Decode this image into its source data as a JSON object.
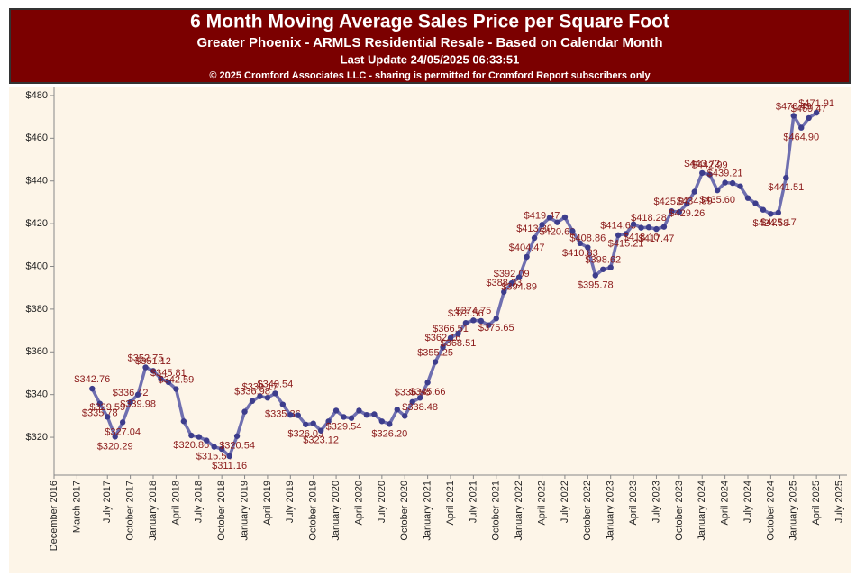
{
  "chart_data": {
    "type": "line",
    "title": "6 Month Moving Average Sales Price per Square Foot",
    "subtitle": "Greater Phoenix - ARMLS Residential Resale - Based on Calendar Month",
    "update": "Last Update 24/05/2025 06:33:51",
    "copyright": "© 2025 Cromford Associates LLC - sharing is permitted for Cromford Report subscribers only",
    "color": "#6f6fb0",
    "x": [
      "2017-05",
      "2017-06",
      "2017-07",
      "2017-08",
      "2017-09",
      "2017-10",
      "2017-11",
      "2017-12",
      "2018-01",
      "2018-02",
      "2018-03",
      "2018-04",
      "2018-05",
      "2018-06",
      "2018-07",
      "2018-08",
      "2018-09",
      "2018-10",
      "2018-11",
      "2018-12",
      "2019-01",
      "2019-02",
      "2019-03",
      "2019-04",
      "2019-05",
      "2019-06",
      "2019-07",
      "2019-08",
      "2019-09",
      "2019-10",
      "2019-11",
      "2019-12",
      "2020-01",
      "2020-02",
      "2020-03",
      "2020-04",
      "2020-05",
      "2020-06",
      "2020-07",
      "2020-08",
      "2020-09",
      "2020-10",
      "2020-11",
      "2020-12",
      "2021-01",
      "2021-02",
      "2021-03",
      "2021-04",
      "2021-05",
      "2021-06",
      "2021-07",
      "2021-08",
      "2021-09",
      "2021-10",
      "2021-11",
      "2021-12",
      "2022-01",
      "2022-02",
      "2022-03",
      "2022-04",
      "2022-05",
      "2022-06",
      "2022-07",
      "2022-08",
      "2022-09",
      "2022-10",
      "2022-11",
      "2022-12",
      "2023-01",
      "2023-02",
      "2023-03",
      "2023-04",
      "2023-05",
      "2023-06",
      "2023-07",
      "2023-08",
      "2023-09",
      "2023-10",
      "2023-11",
      "2023-12",
      "2024-01",
      "2024-02",
      "2024-03",
      "2024-04",
      "2024-05",
      "2024-06",
      "2024-07",
      "2024-08",
      "2024-09",
      "2024-10",
      "2024-11",
      "2024-12",
      "2025-01",
      "2025-02",
      "2025-03",
      "2025-04"
    ],
    "values": [
      342.76,
      335.78,
      329.59,
      320.29,
      327.04,
      336.42,
      339.98,
      352.75,
      351.12,
      347.5,
      345.81,
      342.59,
      327.5,
      320.86,
      320.2,
      318.5,
      315.54,
      314.5,
      311.16,
      320.54,
      332,
      336.98,
      339.17,
      338.5,
      340.54,
      335.36,
      330.5,
      330.3,
      326.03,
      326.5,
      323.12,
      327.5,
      332.5,
      329.54,
      329,
      332.5,
      330.5,
      330.8,
      327.5,
      326.2,
      333,
      330,
      336.58,
      338.48,
      345.66,
      355.25,
      362.16,
      366.51,
      368.51,
      373.56,
      374.75,
      374.5,
      372.5,
      375.65,
      388.03,
      392.09,
      394.89,
      404.47,
      413.3,
      419.47,
      422.8,
      420.62,
      423,
      416.5,
      410.83,
      408.86,
      395.78,
      398.62,
      399.5,
      414.63,
      415.21,
      419.8,
      418.1,
      418.28,
      417.47,
      418.5,
      425.87,
      425.5,
      429.26,
      434.99,
      443.72,
      442.99,
      435.6,
      439.21,
      439,
      437.5,
      432,
      429.5,
      426.5,
      424.58,
      425.17,
      441.51,
      470.49,
      464.9,
      469.47,
      471.91
    ],
    "value_labels": [
      "$342.76",
      "$335.78",
      "$329.59",
      "$320.29",
      "$327.04",
      "$336.42",
      "$339.98",
      "$352.75",
      "$351.12",
      null,
      "$345.81",
      "$342.59",
      null,
      "$320.86",
      null,
      null,
      "$315.54",
      null,
      "$311.16",
      "$320.54",
      null,
      "$336.98",
      "$339.17",
      null,
      "$340.54",
      "$335.36",
      null,
      null,
      "$326.03",
      null,
      "$323.12",
      null,
      null,
      "$329.54",
      null,
      null,
      null,
      null,
      null,
      "$326.20",
      null,
      null,
      "$336.58",
      "$338.48",
      "$345.66",
      "$355.25",
      "$362.16",
      "$366.51",
      "$368.51",
      "$373.56",
      "$374.75",
      null,
      null,
      "$375.65",
      "$388.03",
      "$392.09",
      "$394.89",
      "$404.47",
      "$413.30",
      "$419.47",
      null,
      "$420.62",
      null,
      null,
      "$410.83",
      "$408.86",
      "$395.78",
      "$398.62",
      null,
      "$414.63",
      "$415.21",
      null,
      "$418.10",
      "$418.28",
      "$417.47",
      null,
      "$425.87",
      null,
      "$429.26",
      "$434.99",
      "$443.72",
      "$442.99",
      "$435.60",
      "$439.21",
      null,
      null,
      null,
      null,
      null,
      "$424.58",
      "$425.17",
      "$441.51",
      "$470.49",
      "$464.90",
      "$469.47",
      "$471.91"
    ],
    "xlim": [
      "2016-12",
      "2025-08"
    ],
    "xticks": [
      {
        "value": "2016-12",
        "label": "December 2016"
      },
      {
        "value": "2017-03",
        "label": "March 2017"
      },
      {
        "value": "2017-07",
        "label": "July 2017"
      },
      {
        "value": "2017-10",
        "label": "October 2017"
      },
      {
        "value": "2018-01",
        "label": "January 2018"
      },
      {
        "value": "2018-04",
        "label": "April 2018"
      },
      {
        "value": "2018-07",
        "label": "July 2018"
      },
      {
        "value": "2018-10",
        "label": "October 2018"
      },
      {
        "value": "2019-01",
        "label": "January 2019"
      },
      {
        "value": "2019-04",
        "label": "April 2019"
      },
      {
        "value": "2019-07",
        "label": "July 2019"
      },
      {
        "value": "2019-10",
        "label": "October 2019"
      },
      {
        "value": "2020-01",
        "label": "January 2020"
      },
      {
        "value": "2020-04",
        "label": "April 2020"
      },
      {
        "value": "2020-07",
        "label": "July 2020"
      },
      {
        "value": "2020-10",
        "label": "October 2020"
      },
      {
        "value": "2021-01",
        "label": "January 2021"
      },
      {
        "value": "2021-04",
        "label": "April 2021"
      },
      {
        "value": "2021-07",
        "label": "July 2021"
      },
      {
        "value": "2021-10",
        "label": "October 2021"
      },
      {
        "value": "2022-01",
        "label": "January 2022"
      },
      {
        "value": "2022-04",
        "label": "April 2022"
      },
      {
        "value": "2022-07",
        "label": "July 2022"
      },
      {
        "value": "2022-10",
        "label": "October 2022"
      },
      {
        "value": "2023-01",
        "label": "January 2023"
      },
      {
        "value": "2023-04",
        "label": "April 2023"
      },
      {
        "value": "2023-07",
        "label": "July 2023"
      },
      {
        "value": "2023-10",
        "label": "October 2023"
      },
      {
        "value": "2024-01",
        "label": "January 2024"
      },
      {
        "value": "2024-04",
        "label": "April 2024"
      },
      {
        "value": "2024-07",
        "label": "July 2024"
      },
      {
        "value": "2024-10",
        "label": "October 2024"
      },
      {
        "value": "2025-01",
        "label": "January 2025"
      },
      {
        "value": "2025-04",
        "label": "April 2025"
      },
      {
        "value": "2025-07",
        "label": "July 2025"
      }
    ],
    "ylim": [
      302.3,
      484.2
    ],
    "yticks": [
      {
        "value": 320,
        "label": "$320"
      },
      {
        "value": 340,
        "label": "$340"
      },
      {
        "value": 360,
        "label": "$360"
      },
      {
        "value": 380,
        "label": "$380"
      },
      {
        "value": 400,
        "label": "$400"
      },
      {
        "value": 420,
        "label": "$420"
      },
      {
        "value": 440,
        "label": "$440"
      },
      {
        "value": 460,
        "label": "$460"
      },
      {
        "value": 480,
        "label": "$480"
      }
    ]
  }
}
